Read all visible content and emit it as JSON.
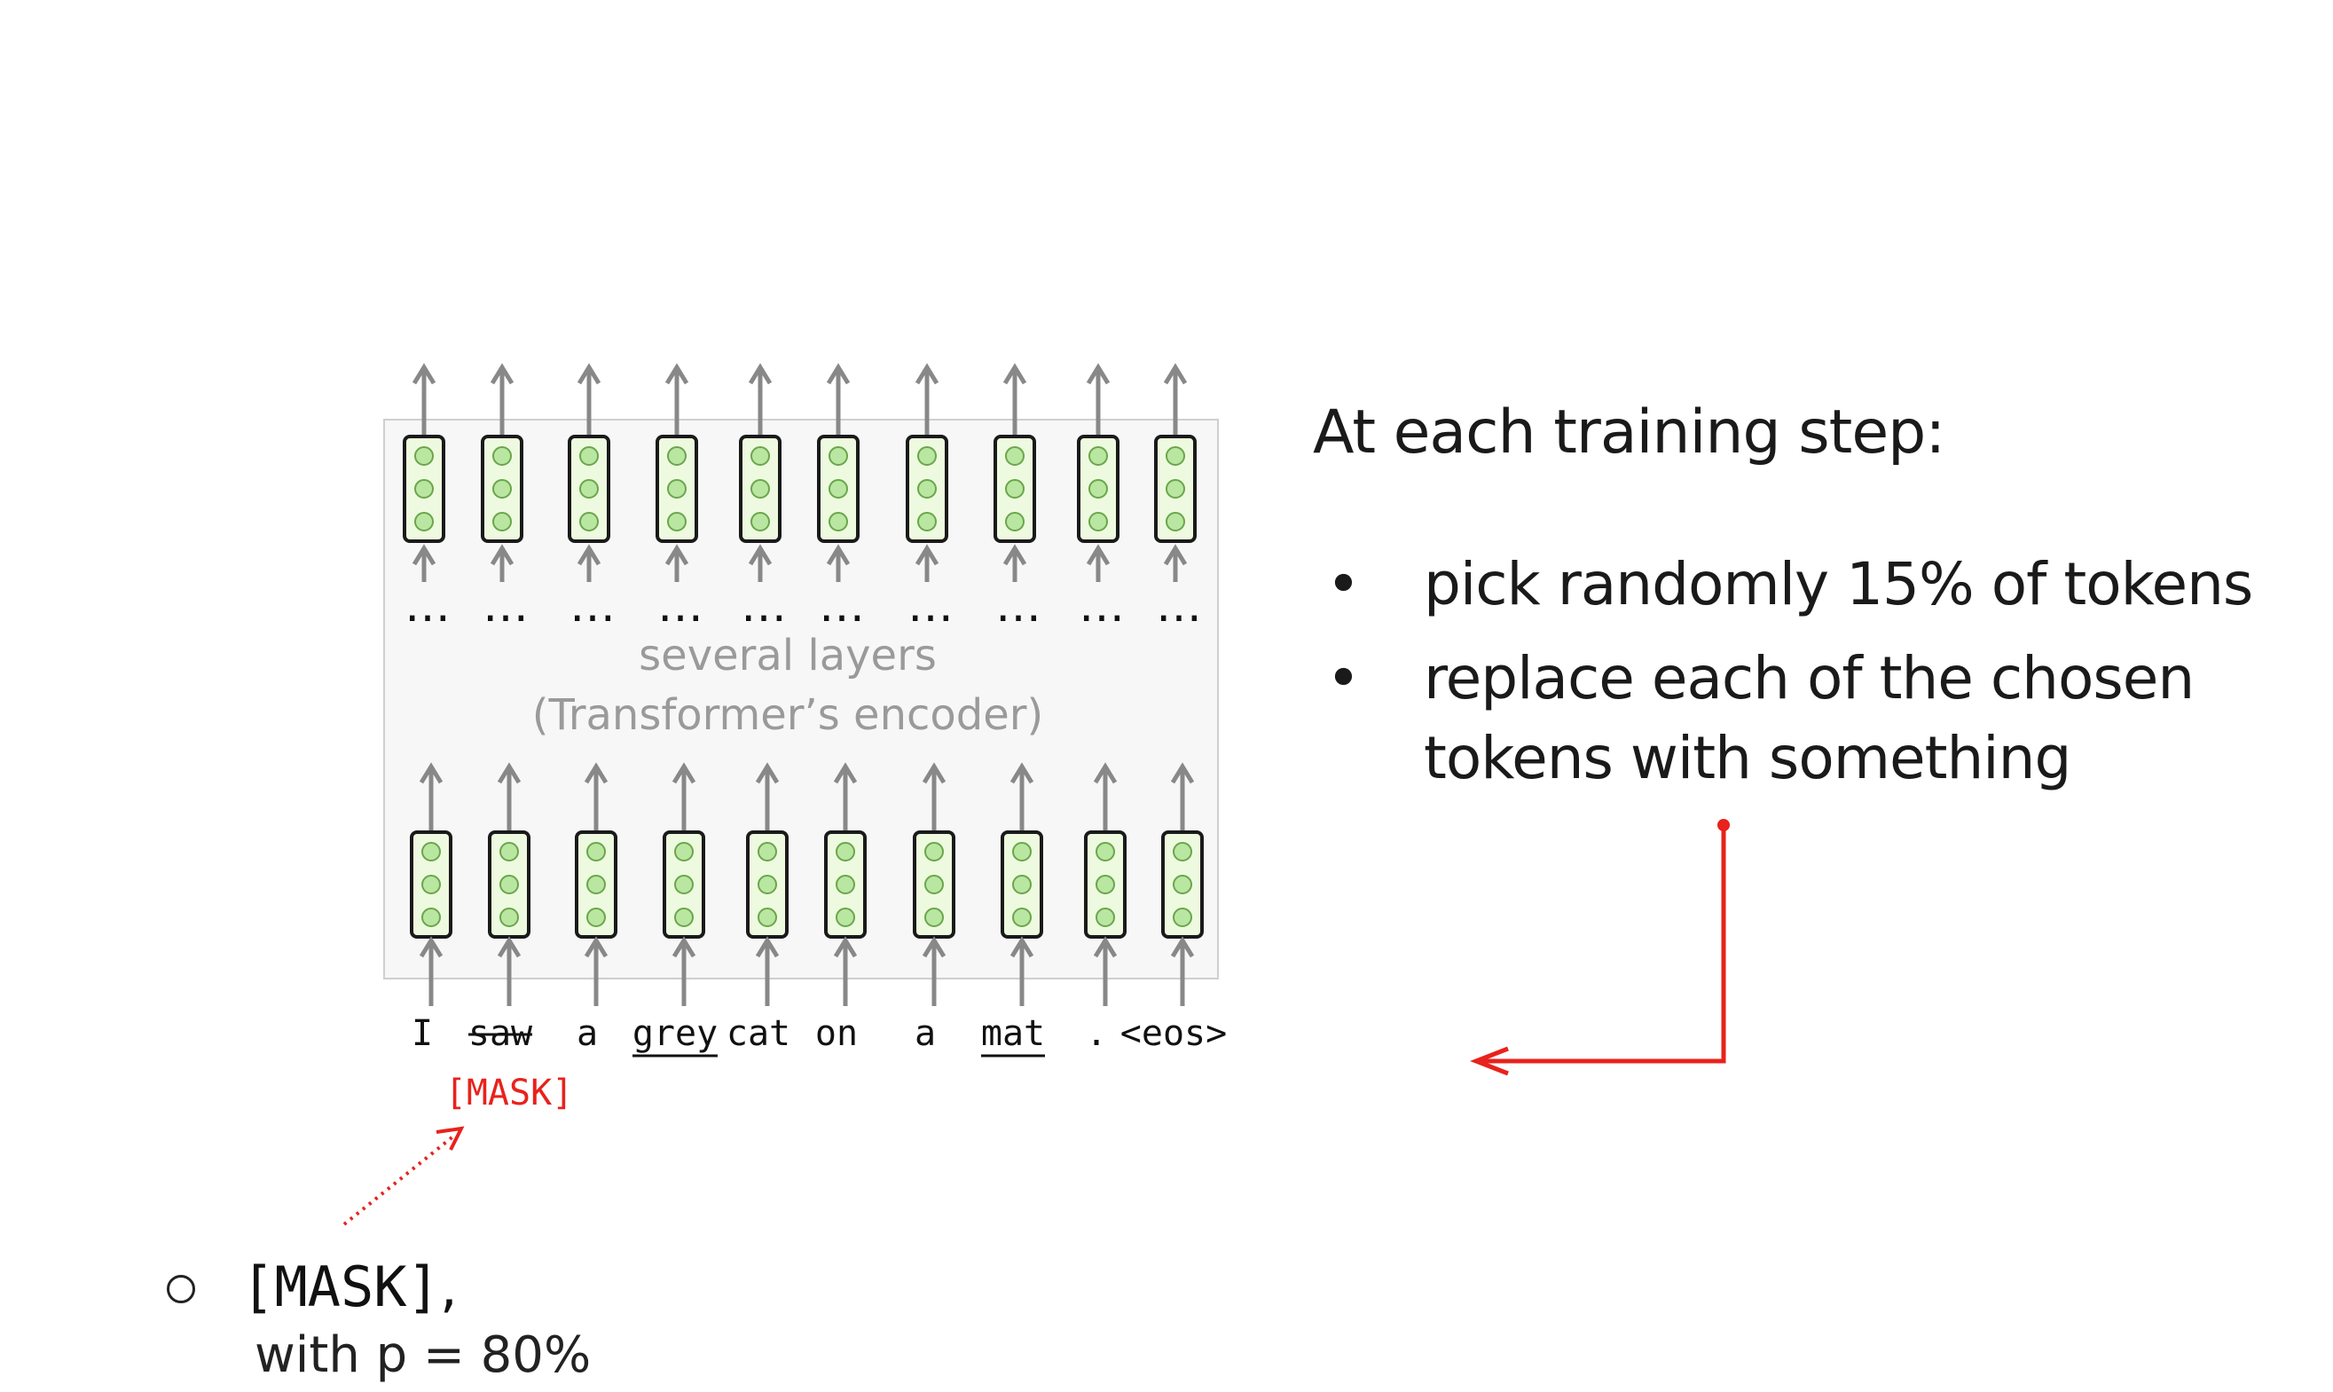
{
  "encoder_label_line1": "several layers",
  "encoder_label_line2": "(Transformer’s encoder)",
  "dots": "…",
  "tokens": [
    {
      "text": "I",
      "style": "plain"
    },
    {
      "text": "saw",
      "style": "strike"
    },
    {
      "text": "a",
      "style": "plain"
    },
    {
      "text": "grey",
      "style": "underline"
    },
    {
      "text": "cat",
      "style": "plain"
    },
    {
      "text": "on",
      "style": "plain"
    },
    {
      "text": "a",
      "style": "plain"
    },
    {
      "text": "mat",
      "style": "underline"
    },
    {
      "text": ".",
      "style": "plain"
    },
    {
      "text": "<eos>",
      "style": "plain"
    }
  ],
  "mask_label": "[MASK]",
  "right_panel": {
    "title": "At each training step:",
    "bullets": [
      {
        "lines": [
          "pick randomly 15% of tokens"
        ]
      },
      {
        "lines": [
          "replace each of the chosen",
          "tokens with something"
        ]
      }
    ]
  },
  "option": {
    "label": "[MASK]",
    "comma": ",",
    "probability_text": "with p = 80%"
  },
  "colors": {
    "cell_fill": "#eefadf",
    "circle_fill": "#b9e7a2",
    "circle_stroke": "#6aa64c",
    "arrow_gray": "#888888",
    "red": "#e8221c",
    "encoder_bg": "#f7f7f7"
  }
}
